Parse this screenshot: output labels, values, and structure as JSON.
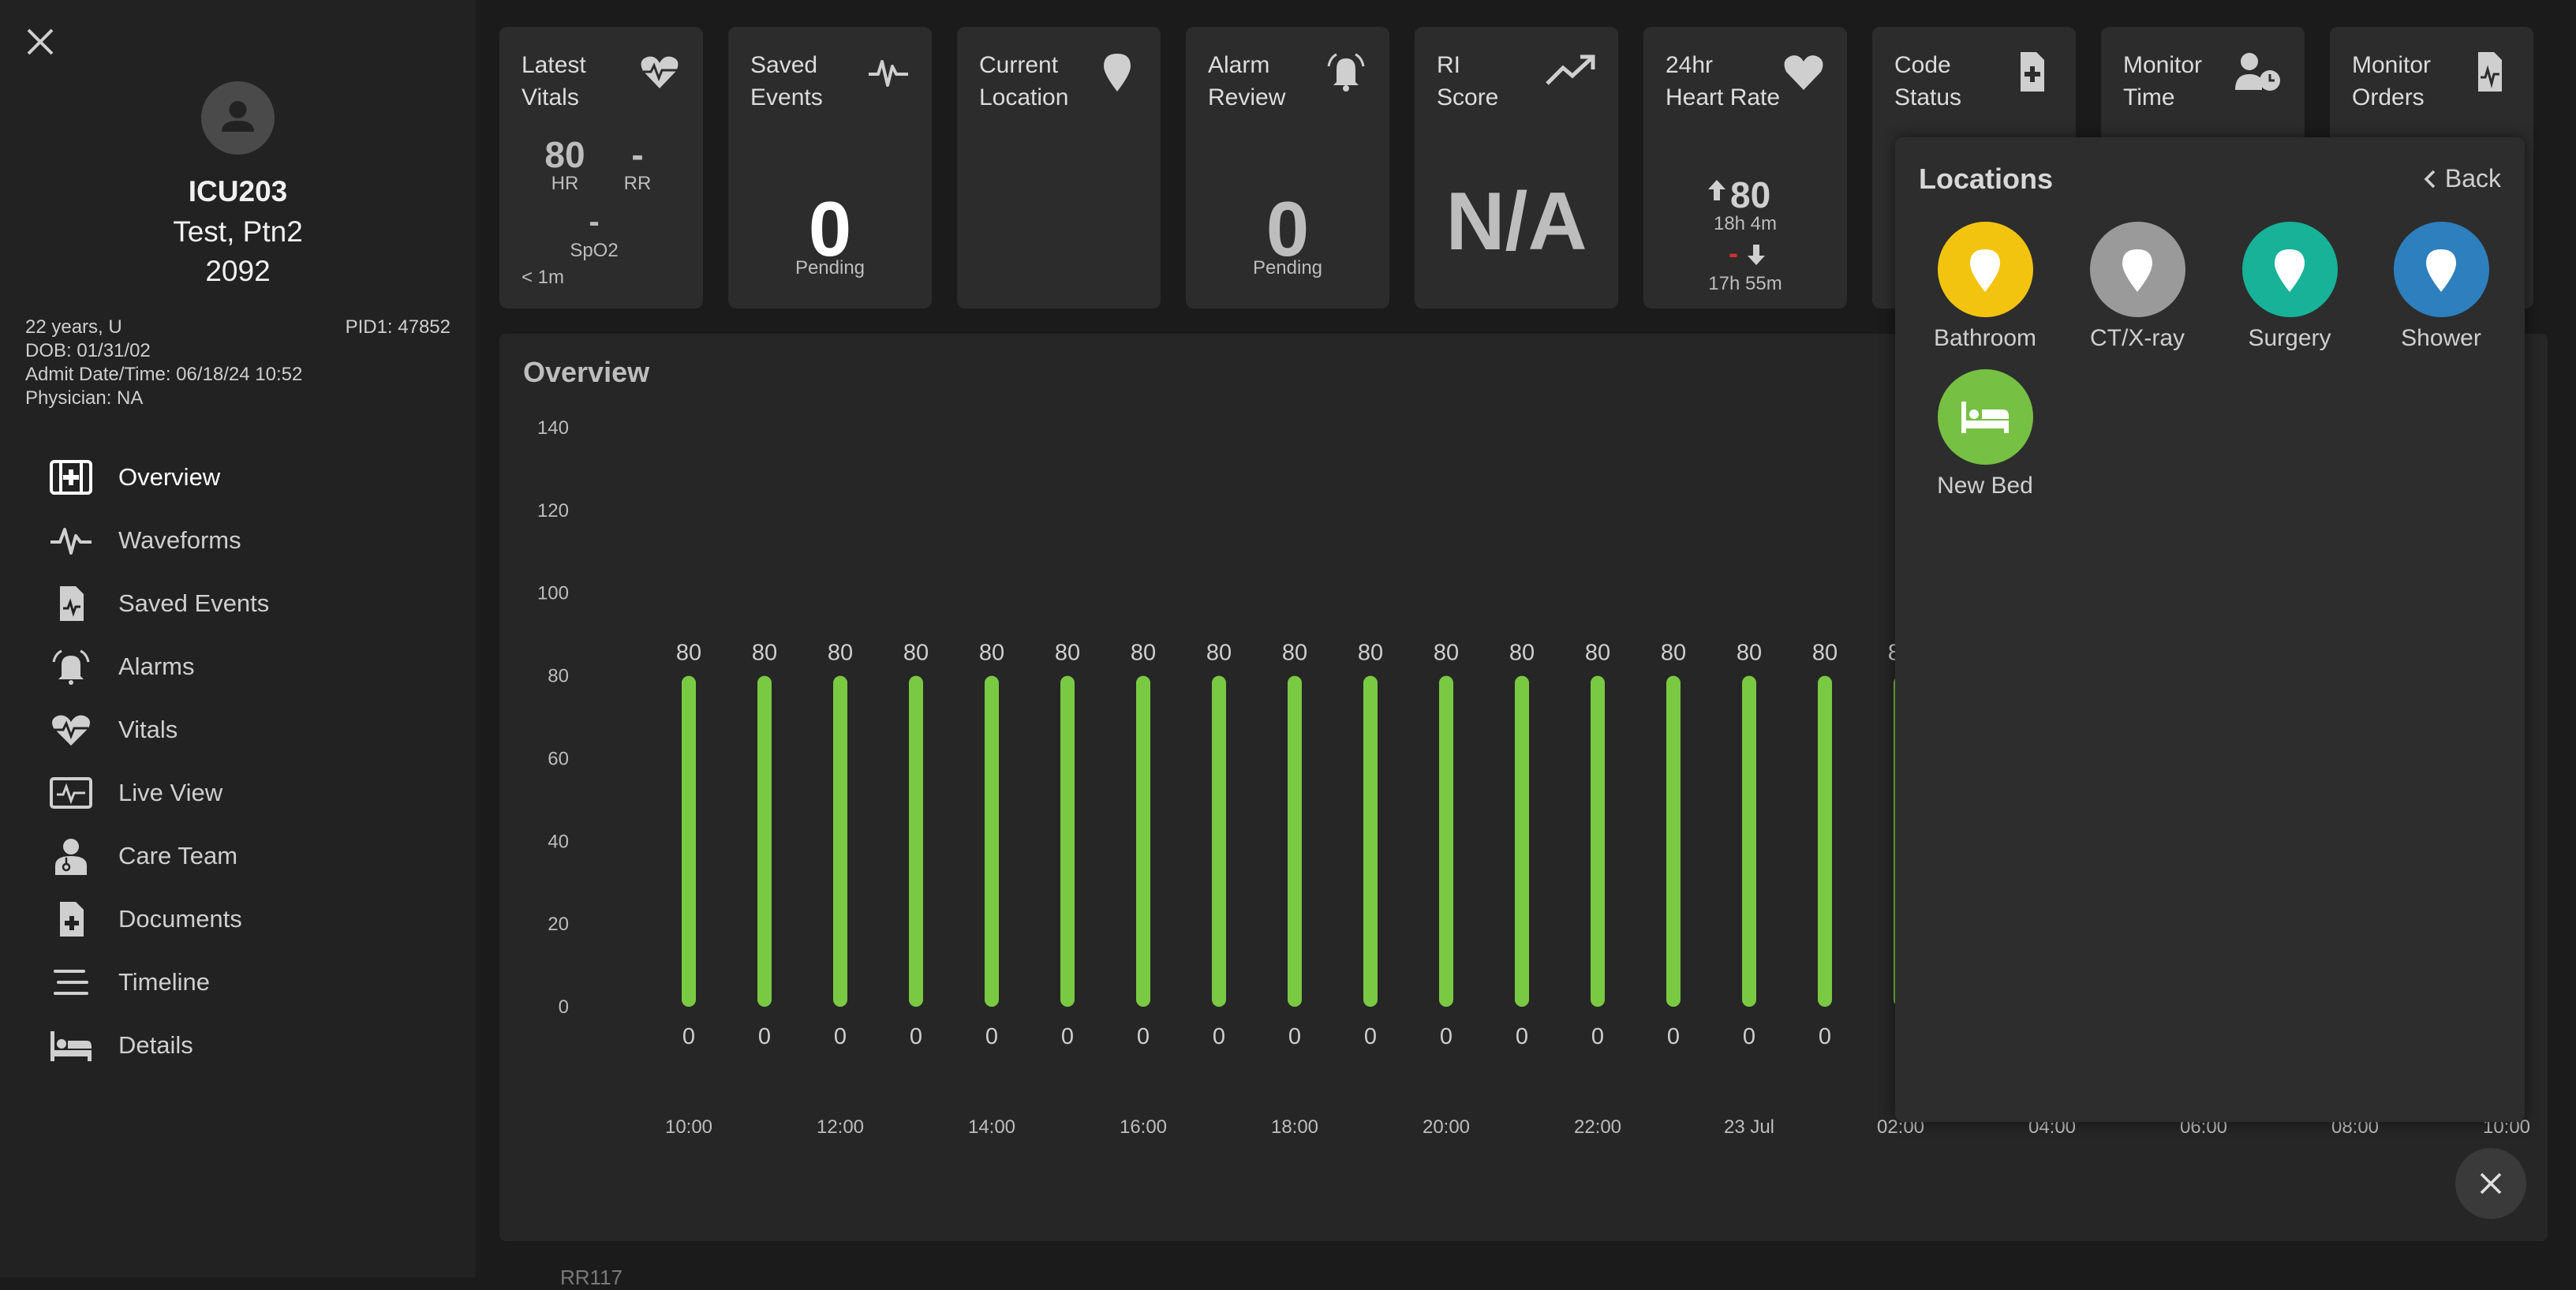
{
  "patient": {
    "room": "ICU203",
    "name": "Test, Ptn2",
    "number": "2092",
    "age_sex": "22 years, U",
    "pid": "PID1: 47852",
    "dob": "DOB: 01/31/02",
    "admit": "Admit Date/Time: 06/18/24 10:52",
    "physician": "Physician: NA"
  },
  "nav": [
    {
      "label": "Overview",
      "icon": "medical-kit-icon",
      "active": true
    },
    {
      "label": "Waveforms",
      "icon": "waveform-icon"
    },
    {
      "label": "Saved Events",
      "icon": "document-waveform-icon"
    },
    {
      "label": "Alarms",
      "icon": "bell-icon"
    },
    {
      "label": "Vitals",
      "icon": "heart-pulse-icon"
    },
    {
      "label": "Live View",
      "icon": "monitor-icon"
    },
    {
      "label": "Care Team",
      "icon": "doctor-icon"
    },
    {
      "label": "Documents",
      "icon": "document-plus-icon"
    },
    {
      "label": "Timeline",
      "icon": "timeline-icon"
    },
    {
      "label": "Details",
      "icon": "bed-icon"
    }
  ],
  "cards": {
    "latest_vitals": {
      "title": "Latest\nVitals",
      "hr_value": "80",
      "hr_label": "HR",
      "rr_value": "-",
      "rr_label": "RR",
      "spo2_value": "-",
      "spo2_label": "SpO2",
      "age": "< 1m"
    },
    "saved_events": {
      "title": "Saved\nEvents",
      "value": "0",
      "sub": "Pending"
    },
    "current_location": {
      "title": "Current\nLocation"
    },
    "alarm_review": {
      "title": "Alarm\nReview",
      "value": "0",
      "sub": "Pending"
    },
    "ri_score": {
      "title": "RI\nScore",
      "value": "N/A"
    },
    "heart_rate_24hr": {
      "title": "24hr\nHeart Rate",
      "high": "80",
      "high_time": "18h 4m",
      "low": "-",
      "low_time": "17h 55m"
    },
    "code_status": {
      "title": "Code\nStatus"
    },
    "monitor_time": {
      "title": "Monitor\nTime"
    },
    "monitor_orders": {
      "title": "Monitor\nOrders"
    }
  },
  "overview": {
    "title": "Overview"
  },
  "chart_data": {
    "type": "bar",
    "title": "",
    "categories": [
      "10:00",
      "12:00",
      "14:00",
      "16:00",
      "18:00",
      "20:00",
      "22:00",
      "23 Jul",
      "02:00",
      "04:00",
      "06:00",
      "08:00",
      "10:00"
    ],
    "bars": [
      {
        "high": 80,
        "low": 0
      },
      {
        "high": 80,
        "low": 0
      },
      {
        "high": 80,
        "low": 0
      },
      {
        "high": 80,
        "low": 0
      },
      {
        "high": 80,
        "low": 0
      },
      {
        "high": 80,
        "low": 0
      },
      {
        "high": 80,
        "low": 0
      },
      {
        "high": 80,
        "low": 0
      },
      {
        "high": 80,
        "low": 0
      },
      {
        "high": 80,
        "low": 0
      },
      {
        "high": 80,
        "low": 0
      },
      {
        "high": 80,
        "low": 0
      },
      {
        "high": 80,
        "low": 0
      },
      {
        "high": 80,
        "low": 0
      },
      {
        "high": 80,
        "low": 0
      },
      {
        "high": 80,
        "low": 0
      },
      {
        "high": 80,
        "low": 0
      }
    ],
    "y_ticks": [
      0,
      20,
      40,
      60,
      80,
      100,
      120,
      140
    ],
    "ylim": [
      0,
      140
    ],
    "bar_color": "#7ac943"
  },
  "locations": {
    "title": "Locations",
    "back_label": "Back",
    "items": [
      {
        "label": "Bathroom",
        "color": "#f2c40f"
      },
      {
        "label": "CT/X-ray",
        "color": "#9a9a9a"
      },
      {
        "label": "Surgery",
        "color": "#17b297"
      },
      {
        "label": "Shower",
        "color": "#2e7fbd"
      },
      {
        "label": "New Bed",
        "color": "#76c043"
      }
    ]
  },
  "footer_text": "RR117"
}
